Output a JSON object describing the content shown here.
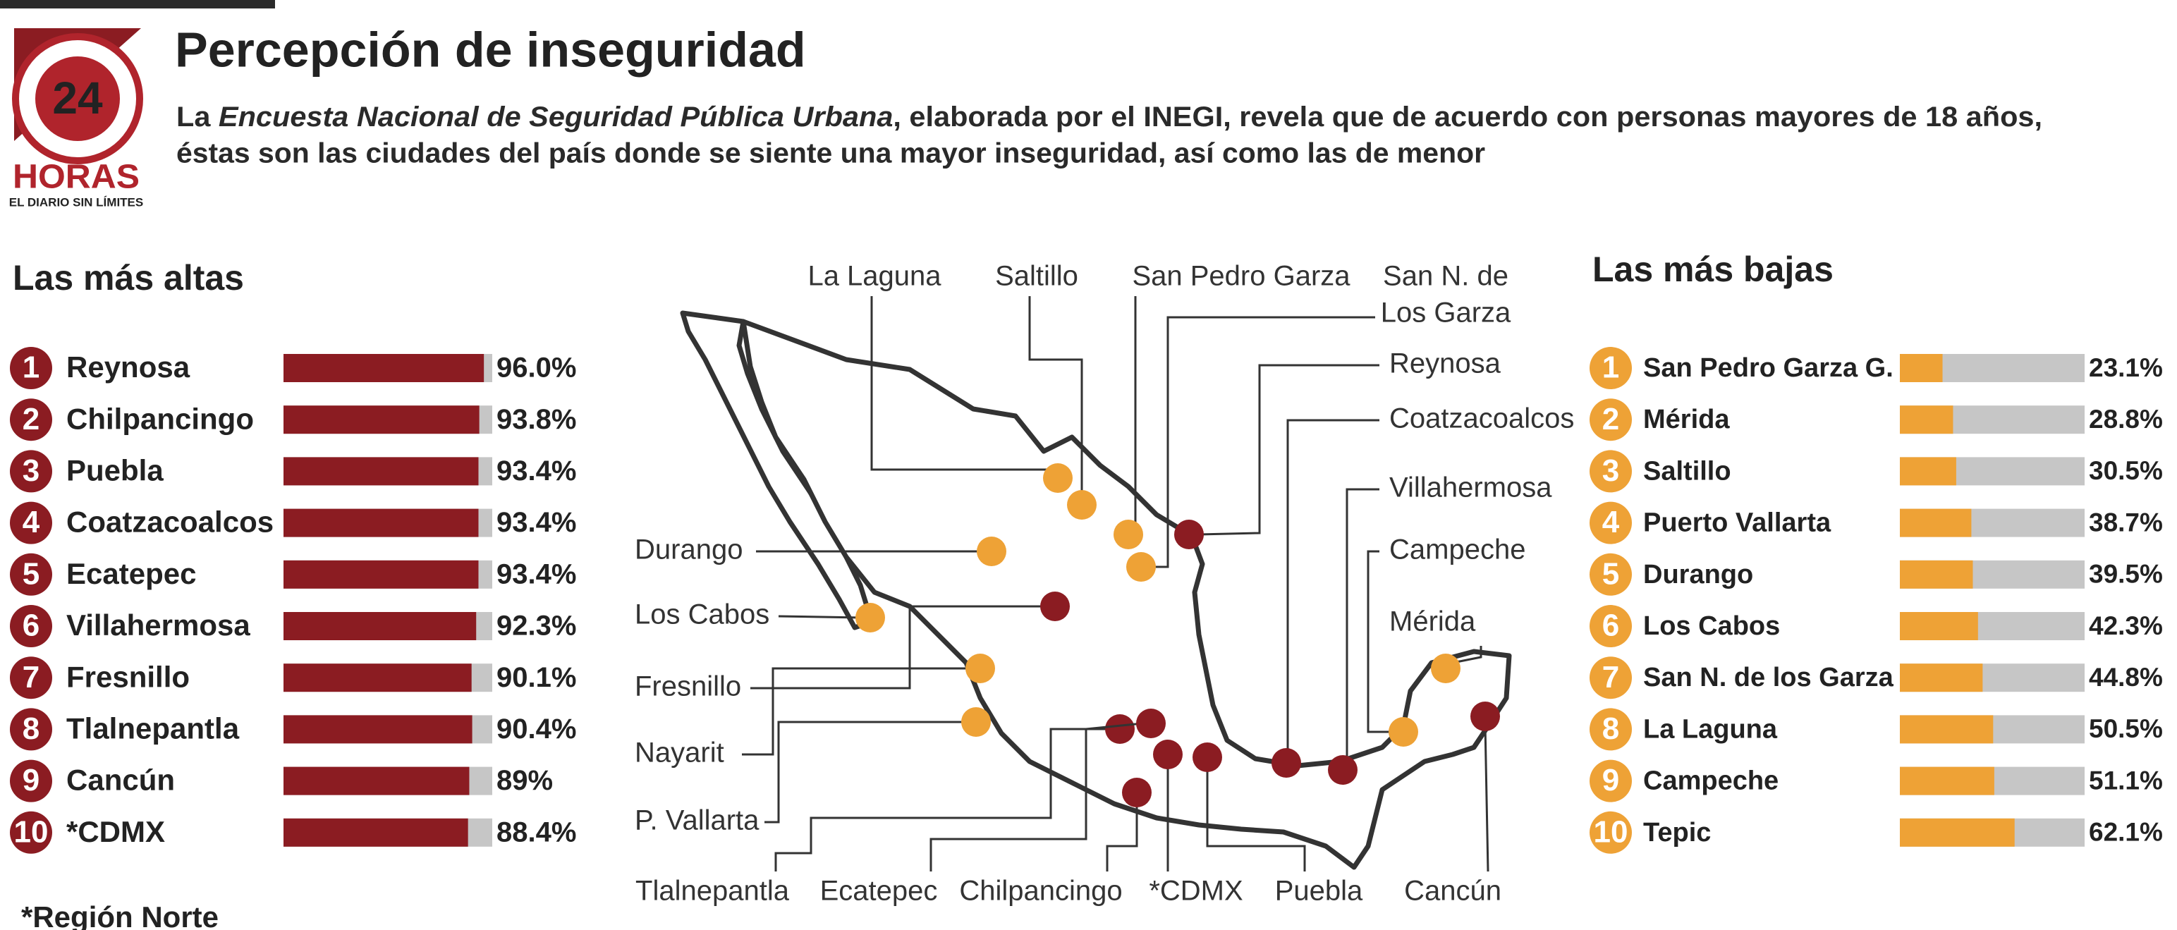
{
  "header": {
    "title": "Percepción de inseguridad",
    "subtitle_line1": [
      "La ",
      "Encuesta Nacional de Seguridad Pública Urbana",
      ", elaborada por el INEGI, revela que de acuerdo con personas mayores de 18 años,"
    ],
    "subtitle_line2": "éstas son las ciudades del país donde se siente una mayor inseguridad, así como las de menor"
  },
  "logo": {
    "number": "24",
    "name": "HORAS",
    "tagline": "EL DIARIO SIN LÍMITES"
  },
  "chart_data": [
    {
      "type": "bar",
      "orientation": "horizontal",
      "title": "Las más altas",
      "ranks": [
        1,
        2,
        3,
        4,
        5,
        6,
        7,
        8,
        9,
        10
      ],
      "categories": [
        "Reynosa",
        "Chilpancingo",
        "Puebla",
        "Coatzacoalcos",
        "Ecatepec",
        "Villahermosa",
        "Fresnillo",
        "Tlalnepantla",
        "Cancún",
        "*CDMX"
      ],
      "values": [
        96.0,
        93.8,
        93.4,
        93.4,
        93.4,
        92.3,
        90.1,
        90.4,
        89,
        88.4
      ],
      "value_labels": [
        "96.0%",
        "93.8%",
        "93.4%",
        "93.4%",
        "93.4%",
        "92.3%",
        "90.1%",
        "90.4%",
        "89%",
        "88.4%"
      ],
      "xlim": [
        0,
        100
      ],
      "color": "#8b1c22",
      "track_color": "#c6c6c6"
    },
    {
      "type": "bar",
      "orientation": "horizontal",
      "title": "Las más bajas",
      "ranks": [
        1,
        2,
        3,
        4,
        5,
        6,
        7,
        8,
        9,
        10
      ],
      "categories": [
        "San Pedro Garza G.",
        "Mérida",
        "Saltillo",
        "Puerto Vallarta",
        "Durango",
        "Los Cabos",
        "San N. de los Garza",
        "La Laguna",
        "Campeche",
        "Tepic"
      ],
      "values": [
        23.1,
        28.8,
        30.5,
        38.7,
        39.5,
        42.3,
        44.8,
        50.5,
        51.1,
        62.1
      ],
      "value_labels": [
        "23.1%",
        "28.8%",
        "30.5%",
        "38.7%",
        "39.5%",
        "42.3%",
        "44.8%",
        "50.5%",
        "51.1%",
        "62.1%"
      ],
      "xlim": [
        0,
        100
      ],
      "color": "#eea236",
      "track_color": "#c6c6c6"
    }
  ],
  "footnote": "*Región Norte",
  "map": {
    "high_color": "#8b1c22",
    "low_color": "#eea236",
    "points": [
      {
        "lines": [
          "La Laguna"
        ],
        "level": "low"
      },
      {
        "lines": [
          "Saltillo"
        ],
        "level": "low"
      },
      {
        "lines": [
          "San Pedro Garza"
        ],
        "level": "low"
      },
      {
        "lines": [
          "San N. de",
          "Los Garza"
        ],
        "level": "low"
      },
      {
        "lines": [
          "Reynosa"
        ],
        "level": "high"
      },
      {
        "lines": [
          "Coatzacoalcos"
        ],
        "level": "high"
      },
      {
        "lines": [
          "Villahermosa"
        ],
        "level": "high"
      },
      {
        "lines": [
          "Campeche"
        ],
        "level": "low"
      },
      {
        "lines": [
          "Mérida"
        ],
        "level": "low"
      },
      {
        "lines": [
          "Durango"
        ],
        "level": "low"
      },
      {
        "lines": [
          "Los Cabos"
        ],
        "level": "low"
      },
      {
        "lines": [
          "Fresnillo"
        ],
        "level": "high"
      },
      {
        "lines": [
          "Nayarit"
        ],
        "level": "low"
      },
      {
        "lines": [
          "P. Vallarta"
        ],
        "level": "low"
      },
      {
        "lines": [
          "Tlalnepantla"
        ],
        "level": "high"
      },
      {
        "lines": [
          "Ecatepec"
        ],
        "level": "high"
      },
      {
        "lines": [
          "Chilpancingo"
        ],
        "level": "high"
      },
      {
        "lines": [
          "*CDMX"
        ],
        "level": "high"
      },
      {
        "lines": [
          "Puebla"
        ],
        "level": "high"
      },
      {
        "lines": [
          "Cancún"
        ],
        "level": "high"
      }
    ]
  }
}
